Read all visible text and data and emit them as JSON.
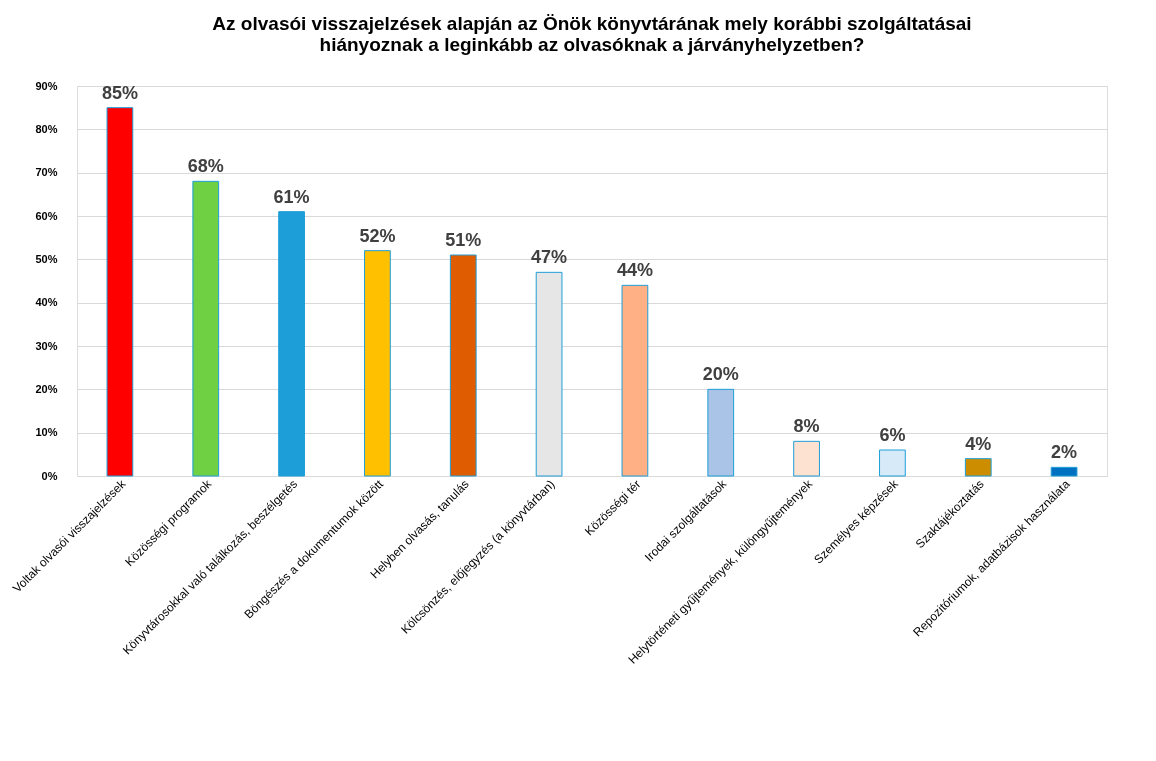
{
  "chart_data": {
    "type": "bar",
    "title": [
      "Az olvasói visszajelzések alapján az Önök könyvtárának mely korábbi szolgáltatásai",
      "hiányoznak a leginkább az olvasóknak a járványhelyzetben?"
    ],
    "categories": [
      "Voltak olvasói visszajelzések",
      "Közösségi programok",
      "Könyvtárosokkal való találkozás, beszélgetés",
      "Böngészés a dokumentumok között",
      "Helyben olvasás, tanulás",
      "Kölcsönzés, előjegyzés (a könyvtárban)",
      "Közösségi tér",
      "Irodai szolgáltatások",
      "Helytörténeti gyűjtemények, különgyűjtemények",
      "Személyes képzések",
      "Szaktájékoztatás",
      "Repozitóriumok, adatbázisok használata"
    ],
    "values": [
      85,
      68,
      61,
      52,
      51,
      47,
      44,
      20,
      8,
      6,
      4,
      2
    ],
    "colors": [
      "#ff0000",
      "#70d044",
      "#1e9ed8",
      "#ffc000",
      "#e05c00",
      "#e6e6e6",
      "#ffb084",
      "#aac4e8",
      "#fde2d2",
      "#d6eaf8",
      "#cc8e00",
      "#0070c0"
    ],
    "value_labels": [
      "85%",
      "68%",
      "61%",
      "52%",
      "51%",
      "47%",
      "44%",
      "20%",
      "8%",
      "6%",
      "4%",
      "2%"
    ],
    "ylim": [
      0,
      90
    ],
    "yticks": [
      {
        "value": 0,
        "label": "0%"
      },
      {
        "value": 10,
        "label": "10%"
      },
      {
        "value": 20,
        "label": "20%"
      },
      {
        "value": 30,
        "label": "30%"
      },
      {
        "value": 40,
        "label": "40%"
      },
      {
        "value": 50,
        "label": "50%"
      },
      {
        "value": 60,
        "label": "60%"
      },
      {
        "value": 70,
        "label": "70%"
      },
      {
        "value": 80,
        "label": "80%"
      },
      {
        "value": 90,
        "label": "90%"
      }
    ],
    "grid": "y"
  }
}
